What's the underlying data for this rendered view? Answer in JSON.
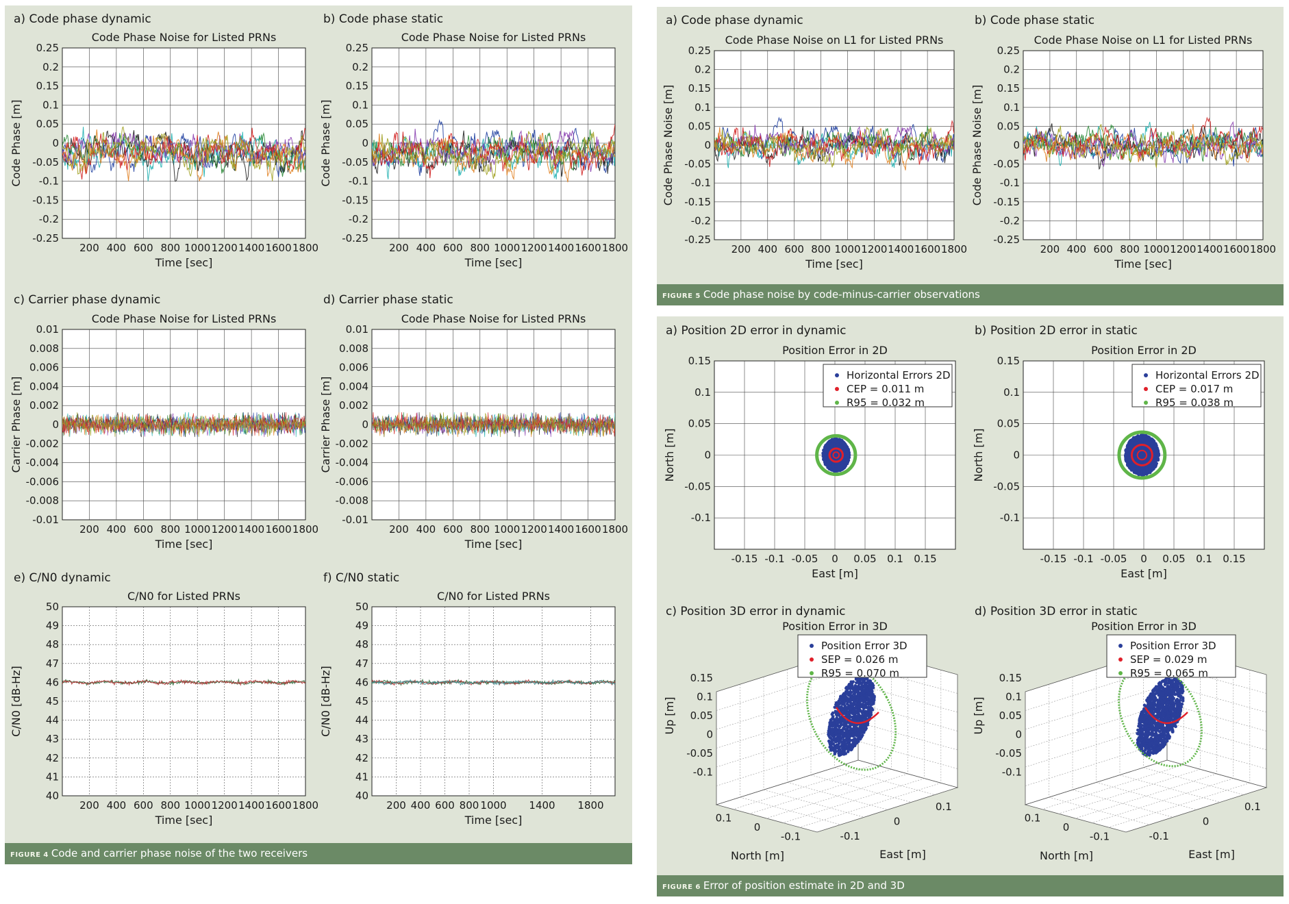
{
  "figure4": {
    "caption_fig": "FIGURE 4",
    "caption_text": "Code and carrier phase noise of the two receivers"
  },
  "figure5": {
    "caption_fig": "FIGURE 5",
    "caption_text": "Code phase noise by code-minus-carrier observations"
  },
  "figure6": {
    "caption_fig": "FIGURE 6",
    "caption_text": "Error of position estimate in 2D and 3D"
  },
  "colors": {
    "panel_bg": "#dfe4d7",
    "caption_bg": "#6b8a66",
    "series": [
      "#1f3fa0",
      "#2e8b3a",
      "#d02020",
      "#20b0b0",
      "#8a3fb0",
      "#a0a020",
      "#202020",
      "#e08020"
    ]
  },
  "chart_data": [
    {
      "id": "f4a",
      "type": "line",
      "subtitle": "a) Code phase dynamic",
      "title": "Code Phase Noise for Listed PRNs",
      "xlabel": "Time [sec]",
      "ylabel": "Code Phase [m]",
      "xlim": [
        0,
        1800
      ],
      "ylim": [
        -0.25,
        0.25
      ],
      "xticks": [
        "200",
        "400",
        "600",
        "800",
        "1000",
        "1200",
        "1400",
        "1600",
        "1800"
      ],
      "yticks": [
        "0.25",
        "0.2",
        "0.15",
        "0.1",
        "0.05",
        "0",
        "-0.05",
        "-0.1",
        "-0.15",
        "-0.2",
        "-0.25"
      ],
      "grid": true,
      "series_count": 8,
      "noise": {
        "center": -0.025,
        "amplitude": 0.035,
        "min": -0.1,
        "max": 0.09
      }
    },
    {
      "id": "f4b",
      "type": "line",
      "subtitle": "b) Code phase static",
      "title": "Code Phase Noise for Listed PRNs",
      "xlabel": "Time [sec]",
      "ylabel": "Code Phase [m]",
      "xlim": [
        0,
        1800
      ],
      "ylim": [
        -0.25,
        0.25
      ],
      "xticks": [
        "200",
        "400",
        "600",
        "800",
        "1000",
        "1200",
        "1400",
        "1600",
        "1800"
      ],
      "yticks": [
        "0.25",
        "0.2",
        "0.15",
        "0.1",
        "0.05",
        "0",
        "-0.05",
        "-0.1",
        "-0.15",
        "-0.2",
        "-0.25"
      ],
      "grid": true,
      "series_count": 8,
      "noise": {
        "center": -0.025,
        "amplitude": 0.035,
        "min": -0.12,
        "max": 0.1
      }
    },
    {
      "id": "f4c",
      "type": "line",
      "subtitle": "c) Carrier phase dynamic",
      "title": "Code Phase Noise for Listed PRNs",
      "xlabel": "Time [sec]",
      "ylabel": "Carrier Phase [m]",
      "xlim": [
        0,
        1800
      ],
      "ylim": [
        -0.01,
        0.01
      ],
      "xticks": [
        "200",
        "400",
        "600",
        "800",
        "1000",
        "1200",
        "1400",
        "1600",
        "1800"
      ],
      "yticks": [
        "0.01",
        "0.008",
        "0.006",
        "0.004",
        "0.002",
        "0",
        "-0.002",
        "-0.004",
        "-0.006",
        "-0.008",
        "-0.01"
      ],
      "grid": true,
      "series_count": 8,
      "noise": {
        "center": 0,
        "amplitude": 0.0011,
        "min": -0.0013,
        "max": 0.0013
      }
    },
    {
      "id": "f4d",
      "type": "line",
      "subtitle": "d) Carrier phase static",
      "title": "Code Phase Noise for Listed PRNs",
      "xlabel": "Time [sec]",
      "ylabel": "Carrier Phase [m]",
      "xlim": [
        0,
        1800
      ],
      "ylim": [
        -0.01,
        0.01
      ],
      "xticks": [
        "200",
        "400",
        "600",
        "800",
        "1000",
        "1200",
        "1400",
        "1600",
        "1800"
      ],
      "yticks": [
        "0.01",
        "0.008",
        "0.006",
        "0.004",
        "0.002",
        "0",
        "-0.002",
        "-0.004",
        "-0.006",
        "-0.008",
        "-0.01"
      ],
      "grid": true,
      "series_count": 8,
      "noise": {
        "center": 0,
        "amplitude": 0.0011,
        "min": -0.0013,
        "max": 0.0013
      }
    },
    {
      "id": "f4e",
      "type": "line",
      "subtitle": "e) C/N0 dynamic",
      "title": "C/N0 for Listed PRNs",
      "xlabel": "Time [sec]",
      "ylabel": "C/N0 [dB-Hz]",
      "xlim": [
        0,
        1800
      ],
      "ylim": [
        40,
        50
      ],
      "xticks": [
        "200",
        "400",
        "600",
        "800",
        "1000",
        "1200",
        "1400",
        "1600",
        "1800"
      ],
      "yticks": [
        "50",
        "49",
        "48",
        "47",
        "46",
        "45",
        "44",
        "43",
        "42",
        "41",
        "40"
      ],
      "grid": "dotted",
      "series_count": 2,
      "noise": {
        "center": 46,
        "amplitude": 0.12,
        "min": 45.6,
        "max": 46.3
      }
    },
    {
      "id": "f4f",
      "type": "line",
      "subtitle": "f) C/N0 static",
      "title": "C/N0 for Listed PRNs",
      "xlabel": "Time [sec]",
      "ylabel": "C/N0 [dB-Hz]",
      "xlim": [
        0,
        2000
      ],
      "ylim": [
        40,
        50
      ],
      "xticks": [
        "200",
        "400",
        "600",
        "800",
        "1000",
        "1400",
        "1800"
      ],
      "xtick_values": [
        200,
        400,
        600,
        800,
        1000,
        1400,
        1800
      ],
      "yticks": [
        "50",
        "49",
        "48",
        "47",
        "46",
        "45",
        "44",
        "43",
        "42",
        "41",
        "40"
      ],
      "grid": "dotted",
      "series_count": 3,
      "noise": {
        "center": 46,
        "amplitude": 0.12,
        "min": 45.7,
        "max": 46.3
      }
    },
    {
      "id": "f5a",
      "type": "line",
      "subtitle": "a) Code phase dynamic",
      "title": "Code Phase Noise on L1 for Listed PRNs",
      "xlabel": "Time [sec]",
      "ylabel": "Code Phase Noise [m]",
      "xlim": [
        0,
        1800
      ],
      "ylim": [
        -0.25,
        0.25
      ],
      "xticks": [
        "200",
        "400",
        "600",
        "800",
        "1000",
        "1200",
        "1400",
        "1600",
        "1800"
      ],
      "yticks": [
        "0.25",
        "0.2",
        "0.15",
        "0.1",
        "0.05",
        "0",
        "-0.05",
        "-0.1",
        "-0.15",
        "-0.2",
        "-0.25"
      ],
      "grid": true,
      "series_count": 8,
      "noise": {
        "center": 0,
        "amplitude": 0.03,
        "min": -0.08,
        "max": 0.09
      }
    },
    {
      "id": "f5b",
      "type": "line",
      "subtitle": "b) Code phase static",
      "title": "Code Phase Noise on L1 for Listed PRNs",
      "xlabel": "Time [sec]",
      "ylabel": "Code Phase Noise [m]",
      "xlim": [
        0,
        1800
      ],
      "ylim": [
        -0.25,
        0.25
      ],
      "xticks": [
        "200",
        "400",
        "600",
        "800",
        "1000",
        "1200",
        "1400",
        "1600",
        "1800"
      ],
      "yticks": [
        "0.25",
        "0.2",
        "0.15",
        "0.1",
        "0.05",
        "0",
        "-0.05",
        "-0.1",
        "-0.15",
        "-0.2",
        "-0.25"
      ],
      "grid": true,
      "series_count": 8,
      "noise": {
        "center": 0,
        "amplitude": 0.03,
        "min": -0.1,
        "max": 0.09
      }
    },
    {
      "id": "f6a",
      "type": "scatter",
      "subtitle": "a) Position 2D error in dynamic",
      "title": "Position Error in 2D",
      "xlabel": "East [m]",
      "ylabel": "North [m]",
      "xlim": [
        -0.2,
        0.2
      ],
      "ylim": [
        -0.15,
        0.15
      ],
      "xticks": [
        "-0.15",
        "-0.1",
        "-0.05",
        "0",
        "0.05",
        "0.1",
        "0.15"
      ],
      "yticks": [
        "0.15",
        "0.1",
        "0.05",
        "0",
        "-0.05",
        "-0.1"
      ],
      "grid": true,
      "legend": [
        "Horizontal Errors 2D",
        "CEP = 0.011 m",
        "R95 = 0.032 m"
      ],
      "legend_position": "top-right",
      "cep": 0.011,
      "r95": 0.032,
      "cloud": {
        "center": [
          0.002,
          0.0
        ],
        "spread": [
          0.022,
          0.026
        ]
      }
    },
    {
      "id": "f6b",
      "type": "scatter",
      "subtitle": "b) Position 2D error in static",
      "title": "Position Error in 2D",
      "xlabel": "East [m]",
      "ylabel": "North [m]",
      "xlim": [
        -0.2,
        0.2
      ],
      "ylim": [
        -0.15,
        0.15
      ],
      "xticks": [
        "-0.15",
        "-0.1",
        "-0.05",
        "0",
        "0.05",
        "0.1",
        "0.15"
      ],
      "yticks": [
        "0.15",
        "0.1",
        "0.05",
        "0",
        "-0.05",
        "-0.1"
      ],
      "grid": true,
      "legend": [
        "Horizontal Errors 2D",
        "CEP = 0.017 m",
        "R95 = 0.038 m"
      ],
      "legend_position": "top-right",
      "cep": 0.017,
      "r95": 0.038,
      "cloud": {
        "center": [
          -0.003,
          0.0
        ],
        "spread": [
          0.028,
          0.032
        ]
      }
    },
    {
      "id": "f6c",
      "type": "scatter",
      "subtitle": "c) Position 3D error in dynamic",
      "title": "Position Error in 3D",
      "xlabel": "East [m]",
      "ylabel": "Up [m]",
      "zlabel": "North [m]",
      "yticks": [
        "0.15",
        "0.1",
        "0.05",
        "0",
        "-0.05",
        "-0.1"
      ],
      "east_ticks": [
        "-0.1",
        "0",
        "0.1"
      ],
      "north_ticks": [
        "0.1",
        "0",
        "-0.1"
      ],
      "grid": true,
      "legend": [
        "Position Error 3D",
        "SEP = 0.026 m",
        "R95 = 0.070 m"
      ],
      "legend_position": "top-right",
      "sep": 0.026,
      "r95": 0.07
    },
    {
      "id": "f6d",
      "type": "scatter",
      "subtitle": "d) Position 3D error in static",
      "title": "Position Error in 3D",
      "xlabel": "East [m]",
      "ylabel": "Up [m]",
      "zlabel": "North [m]",
      "yticks": [
        "0.15",
        "0.1",
        "0.05",
        "0",
        "-0.05",
        "-0.1"
      ],
      "east_ticks": [
        "-0.1",
        "0",
        "0.1"
      ],
      "north_ticks": [
        "0.1",
        "0",
        "-0.1"
      ],
      "grid": true,
      "legend": [
        "Position Error 3D",
        "SEP = 0.029 m",
        "R95 = 0.065 m"
      ],
      "legend_position": "top-right",
      "sep": 0.029,
      "r95": 0.065
    }
  ]
}
